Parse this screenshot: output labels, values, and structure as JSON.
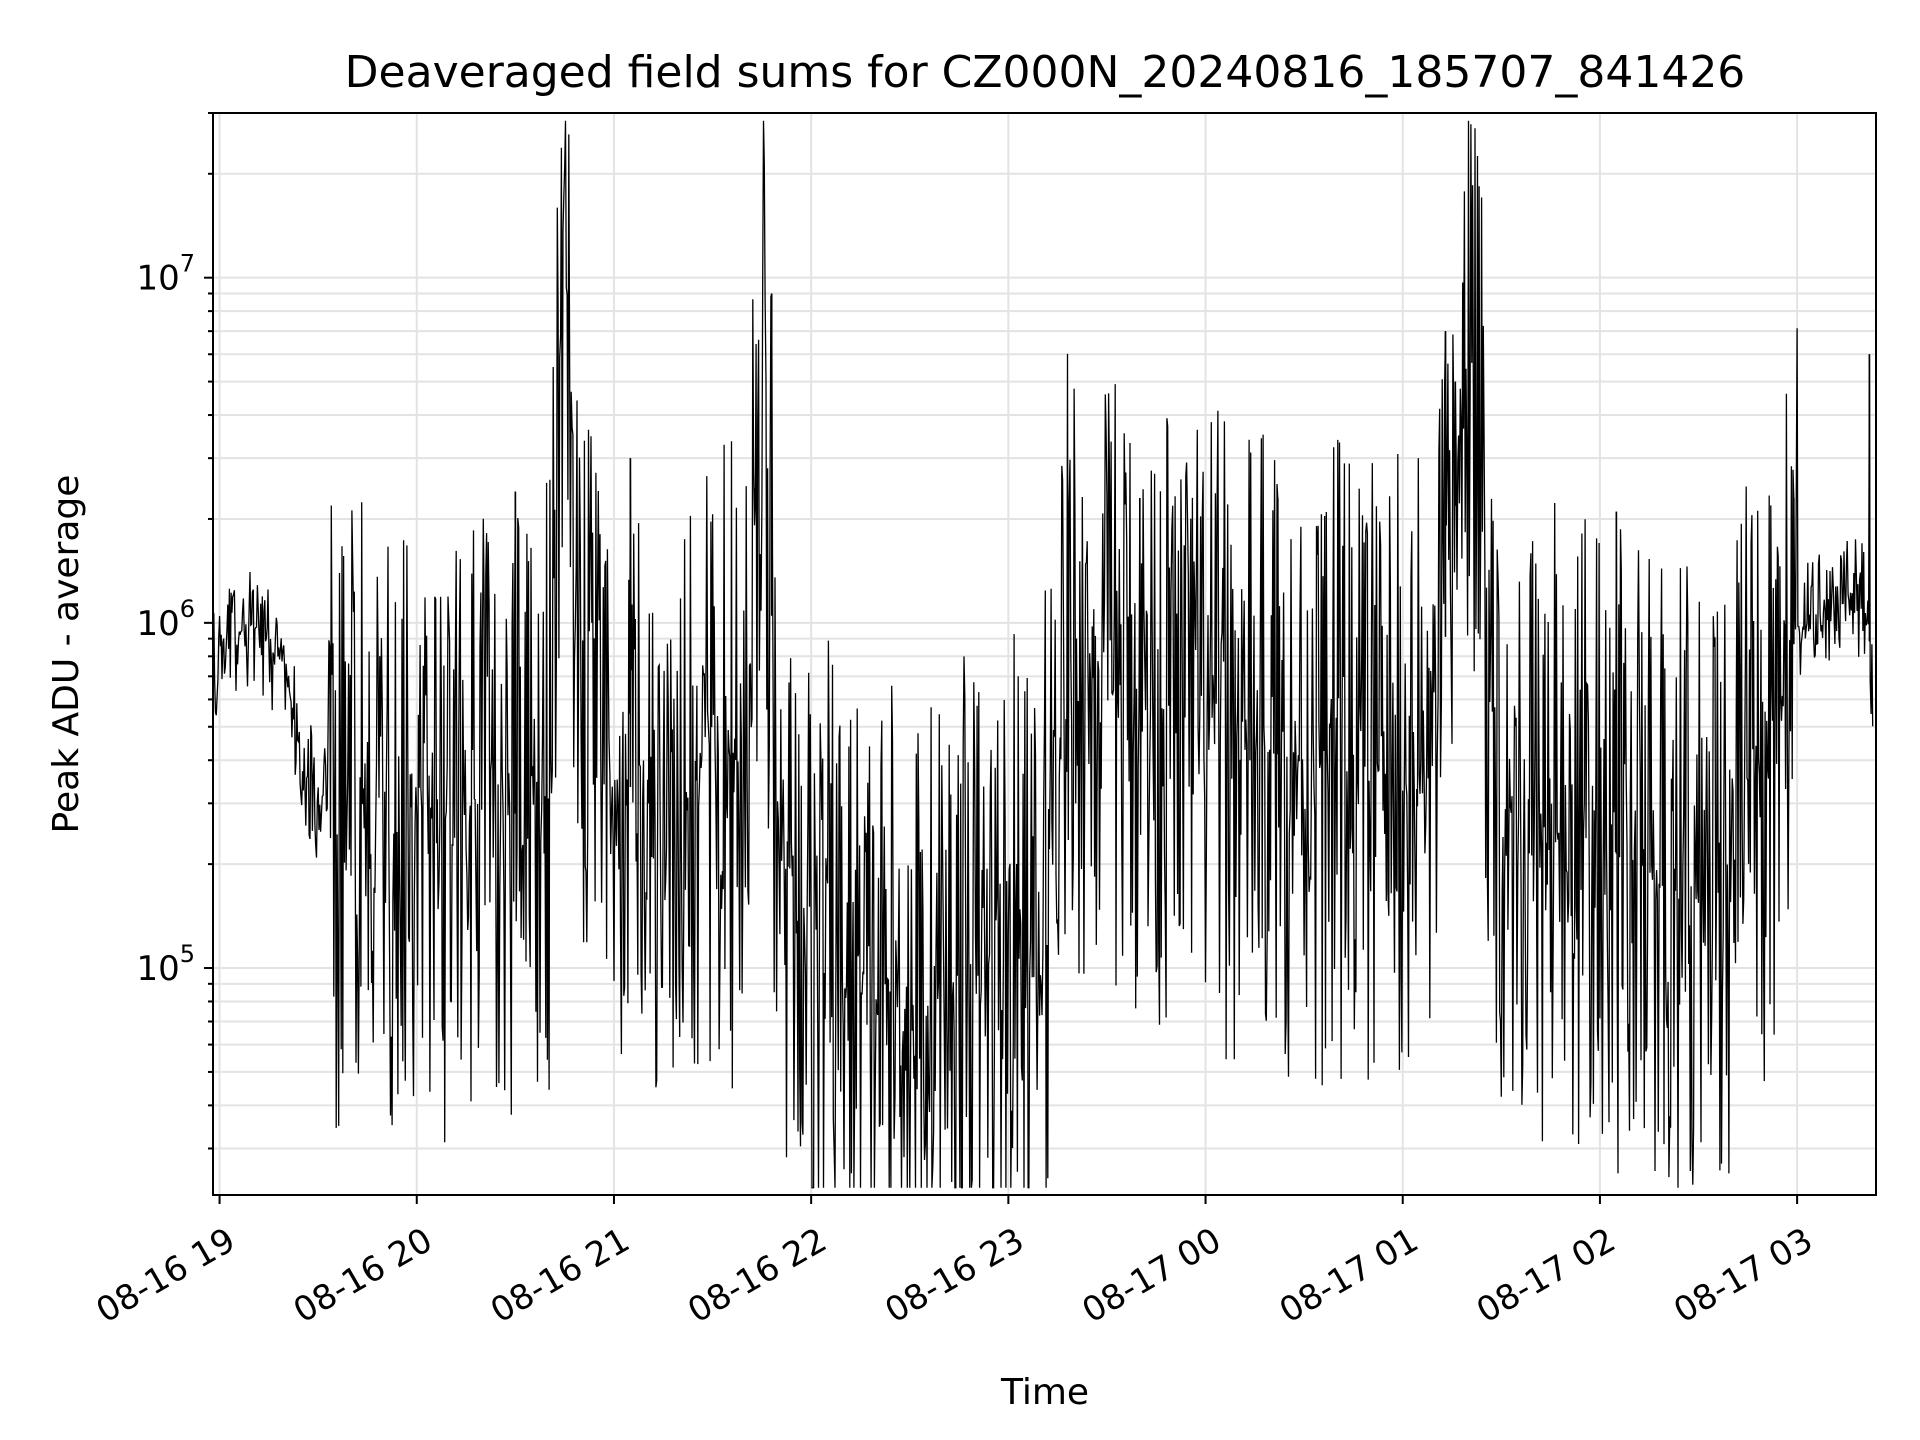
{
  "chart_data": {
    "type": "line",
    "title": "Deaveraged field sums for CZ000N_20240816_185707_841426",
    "xlabel": "Time",
    "ylabel": "Peak ADU - average",
    "y_scale": "log",
    "ylim": [
      22000,
      30000000
    ],
    "xlim": [
      "08-16 18:58",
      "08-17 03:24"
    ],
    "grid": true,
    "line_color": "#000000",
    "x_ticks": [
      "08-16 19",
      "08-16 20",
      "08-16 21",
      "08-16 22",
      "08-16 23",
      "08-17 00",
      "08-17 01",
      "08-17 02",
      "08-17 03"
    ],
    "y_ticks": [
      {
        "base": "10",
        "exp": "5",
        "value": 100000
      },
      {
        "base": "10",
        "exp": "6",
        "value": 1000000
      },
      {
        "base": "10",
        "exp": "7",
        "value": 10000000
      }
    ],
    "series": [
      {
        "x": [
          "08-16 18:58",
          "08-16 19:00",
          "08-16 19:05",
          "08-16 19:10",
          "08-16 19:15",
          "08-16 19:20",
          "08-16 19:25",
          "08-16 19:30",
          "08-16 19:35",
          "08-16 19:40",
          "08-16 19:45",
          "08-16 19:50",
          "08-16 19:55",
          "08-16 20:00",
          "08-16 20:10",
          "08-16 20:20",
          "08-16 20:30",
          "08-16 20:40",
          "08-16 20:45",
          "08-16 20:50",
          "08-16 21:00",
          "08-16 21:10",
          "08-16 21:20",
          "08-16 21:30",
          "08-16 21:40",
          "08-16 21:45",
          "08-16 21:50",
          "08-16 22:00",
          "08-16 22:10",
          "08-16 22:20",
          "08-16 22:30",
          "08-16 22:40",
          "08-16 22:50",
          "08-16 23:00",
          "08-16 23:10",
          "08-16 23:15",
          "08-16 23:20",
          "08-16 23:30",
          "08-16 23:40",
          "08-16 23:50",
          "08-17 00:00",
          "08-17 00:10",
          "08-17 00:20",
          "08-17 00:30",
          "08-17 00:40",
          "08-17 00:50",
          "08-17 01:00",
          "08-17 01:10",
          "08-17 01:20",
          "08-17 01:30",
          "08-17 01:40",
          "08-17 01:50",
          "08-17 02:00",
          "08-17 02:10",
          "08-17 02:20",
          "08-17 02:30",
          "08-17 02:40",
          "08-17 02:50",
          "08-17 03:00",
          "08-17 03:10",
          "08-17 03:20",
          "08-17 03:24"
        ],
        "y": [
          700000,
          950000,
          900000,
          1000000,
          850000,
          750000,
          380000,
          300000,
          280000,
          260000,
          350000,
          320000,
          300000,
          280000,
          260000,
          300000,
          280000,
          300000,
          21000000,
          450000,
          350000,
          320000,
          300000,
          450000,
          350000,
          9000000,
          250000,
          120000,
          90000,
          80000,
          75000,
          85000,
          100000,
          110000,
          90000,
          700000,
          750000,
          650000,
          600000,
          550000,
          500000,
          450000,
          420000,
          400000,
          400000,
          380000,
          350000,
          380000,
          7000000,
          300000,
          260000,
          250000,
          230000,
          200000,
          180000,
          170000,
          230000,
          380000,
          950000,
          1100000,
          1200000,
          650000
        ],
        "spikes": [
          {
            "x": "08-16 20:45",
            "y": 21000000
          },
          {
            "x": "08-16 21:48",
            "y": 9000000
          },
          {
            "x": "08-17 01:13",
            "y": 7000000
          },
          {
            "x": "08-17 03:22",
            "y": 6000000
          },
          {
            "x": "08-16 21:05",
            "y": 3000000
          },
          {
            "x": "08-17 01:16",
            "y": 5000000
          },
          {
            "x": "08-16 20:30",
            "y": 2400000
          },
          {
            "x": "08-17 00:22",
            "y": 2300000
          },
          {
            "x": "08-16 23:40",
            "y": 2300000
          },
          {
            "x": "08-17 02:05",
            "y": 2100000
          },
          {
            "x": "08-16 21:43",
            "y": 2200000
          },
          {
            "x": "08-17 02:59",
            "y": 2300000
          }
        ]
      }
    ]
  }
}
